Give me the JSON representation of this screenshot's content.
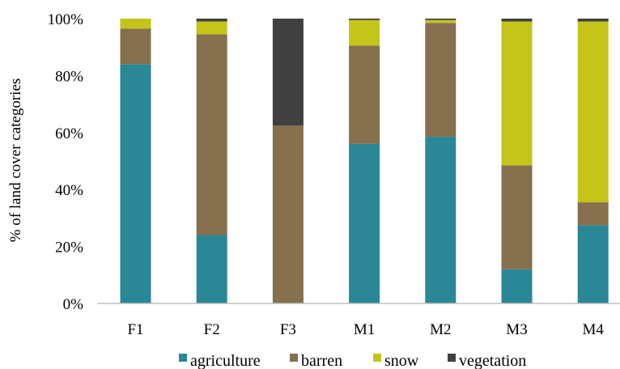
{
  "chart_data": {
    "type": "bar",
    "stacked": true,
    "percent_stacked": true,
    "title": "",
    "xlabel": "",
    "ylabel": "% of land cover categories",
    "ylim": [
      0,
      100
    ],
    "yticks": [
      "0%",
      "20%",
      "40%",
      "60%",
      "80%",
      "100%"
    ],
    "categories": [
      "F1",
      "F2",
      "F3",
      "M1",
      "M2",
      "M3",
      "M4"
    ],
    "series": [
      {
        "name": "agriculture",
        "color": "#2a8796",
        "values": [
          84,
          24,
          0,
          56,
          58.5,
          12,
          27.5
        ]
      },
      {
        "name": "barren",
        "color": "#86704d",
        "values": [
          12.5,
          70.5,
          62.5,
          34.5,
          40,
          36.5,
          8
        ]
      },
      {
        "name": "snow",
        "color": "#c4c419",
        "values": [
          3.5,
          4.5,
          0,
          9,
          1,
          50.5,
          63.5
        ]
      },
      {
        "name": "vegetation",
        "color": "#404040",
        "values": [
          0,
          1,
          37.5,
          0.5,
          0.5,
          1,
          1
        ]
      }
    ],
    "grid": false,
    "legend_position": "bottom"
  }
}
